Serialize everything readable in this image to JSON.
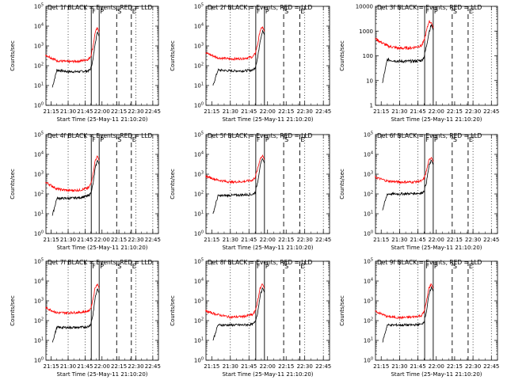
{
  "figure": {
    "background": "#ffffff",
    "axis_color": "#000000",
    "events_color": "#000000",
    "lld_color": "#ff0000"
  },
  "chart_data": [
    {
      "type": "line",
      "title": "Det 1f BLACK = Events, RED = LLD",
      "xlabel": "Start Time (25-May-11 21:10:20)",
      "ylabel": "Counts/sec",
      "x_ticks": [
        "21:15",
        "21:30",
        "21:45",
        "22:00",
        "22:15",
        "22:30",
        "22:45"
      ],
      "y_ticks": [
        "10^0",
        "10^1",
        "10^2",
        "10^3",
        "10^4",
        "10^5"
      ],
      "ylim": [
        1,
        100000
      ],
      "yscale": "log",
      "markers": {
        "solid": [
          "F",
          "P"
        ],
        "dashed": [
          "S",
          "E"
        ],
        "dotted_at": [
          "21:30",
          "21:45",
          "22:30",
          "22:45"
        ]
      },
      "series": [
        {
          "name": "Events",
          "color": "#000000",
          "x": [
            "21:16",
            "21:20",
            "21:30",
            "21:40",
            "21:48",
            "21:50",
            "21:52",
            "21:54",
            "21:56"
          ],
          "y": [
            8,
            60,
            50,
            50,
            55,
            70,
            200,
            1500,
            5000
          ]
        },
        {
          "name": "LLD",
          "color": "#ff0000",
          "x": [
            "21:10",
            "21:20",
            "21:30",
            "21:40",
            "21:48",
            "21:50",
            "21:52",
            "21:54",
            "21:56"
          ],
          "y": [
            350,
            180,
            160,
            170,
            210,
            300,
            900,
            5000,
            8000
          ]
        }
      ]
    },
    {
      "type": "line",
      "title": "Det 2f BLACK = Events, RED = LLD",
      "xlabel": "Start Time (25-May-11 21:10:20)",
      "ylabel": "Counts/sec",
      "x_ticks": [
        "21:15",
        "21:30",
        "21:45",
        "22:00",
        "22:15",
        "22:30",
        "22:45"
      ],
      "y_ticks": [
        "10^0",
        "10^1",
        "10^2",
        "10^3",
        "10^4",
        "10^5"
      ],
      "ylim": [
        1,
        100000
      ],
      "yscale": "log",
      "markers": {
        "solid": [
          "F",
          "P"
        ],
        "dashed": [
          "S",
          "E"
        ],
        "dotted_at": [
          "21:30",
          "21:45",
          "22:30",
          "22:45"
        ]
      },
      "series": [
        {
          "name": "Events",
          "color": "#000000",
          "x": [
            "21:16",
            "21:20",
            "21:30",
            "21:40",
            "21:48",
            "21:50",
            "21:52",
            "21:54",
            "21:56"
          ],
          "y": [
            10,
            60,
            55,
            55,
            60,
            80,
            250,
            1800,
            6000
          ]
        },
        {
          "name": "LLD",
          "color": "#ff0000",
          "x": [
            "21:10",
            "21:20",
            "21:30",
            "21:40",
            "21:48",
            "21:50",
            "21:52",
            "21:54",
            "21:56"
          ],
          "y": [
            450,
            250,
            220,
            230,
            280,
            400,
            1200,
            6000,
            9000
          ]
        }
      ]
    },
    {
      "type": "line",
      "title": "Det 3f BLACK = Events, RED = LLD",
      "xlabel": "Start Time (25-May-11 21:10:20)",
      "ylabel": "Counts/sec",
      "x_ticks": [
        "21:15",
        "21:30",
        "21:45",
        "22:00",
        "22:15",
        "22:30",
        "22:45"
      ],
      "y_ticks": [
        "1",
        "10",
        "100",
        "1000",
        "10000"
      ],
      "ylim": [
        1,
        10000
      ],
      "yscale": "log",
      "markers": {
        "solid": [
          "F",
          "P"
        ],
        "dashed": [
          "S",
          "E"
        ],
        "dotted_at": [
          "21:30",
          "21:45",
          "22:30",
          "22:45"
        ]
      },
      "series": [
        {
          "name": "Events",
          "color": "#000000",
          "x": [
            "21:16",
            "21:20",
            "21:30",
            "21:40",
            "21:48",
            "21:50",
            "21:52",
            "21:54",
            "21:56"
          ],
          "y": [
            8,
            70,
            60,
            60,
            65,
            90,
            250,
            900,
            1800
          ]
        },
        {
          "name": "LLD",
          "color": "#ff0000",
          "x": [
            "21:10",
            "21:20",
            "21:30",
            "21:40",
            "21:48",
            "21:50",
            "21:52",
            "21:54",
            "21:56"
          ],
          "y": [
            500,
            250,
            200,
            210,
            260,
            400,
            1000,
            2500,
            2200
          ]
        }
      ]
    },
    {
      "type": "line",
      "title": "Det 4f BLACK = Events, RED = LLD",
      "xlabel": "Start Time (25-May-11 21:10:20)",
      "ylabel": "Counts/sec",
      "x_ticks": [
        "21:15",
        "21:30",
        "21:45",
        "22:00",
        "22:15",
        "22:30",
        "22:45"
      ],
      "y_ticks": [
        "10^0",
        "10^1",
        "10^2",
        "10^3",
        "10^4",
        "10^5"
      ],
      "ylim": [
        1,
        100000
      ],
      "yscale": "log",
      "markers": {
        "solid": [
          "F",
          "P"
        ],
        "dashed": [
          "S",
          "E"
        ],
        "dotted_at": [
          "21:30",
          "21:45",
          "22:30",
          "22:45"
        ]
      },
      "series": [
        {
          "name": "Events",
          "color": "#000000",
          "x": [
            "21:16",
            "21:20",
            "21:30",
            "21:40",
            "21:48",
            "21:50",
            "21:52",
            "21:54",
            "21:56"
          ],
          "y": [
            8,
            60,
            60,
            65,
            80,
            110,
            300,
            2000,
            5000
          ]
        },
        {
          "name": "LLD",
          "color": "#ff0000",
          "x": [
            "21:10",
            "21:20",
            "21:30",
            "21:40",
            "21:48",
            "21:50",
            "21:52",
            "21:54",
            "21:56"
          ],
          "y": [
            400,
            180,
            150,
            155,
            200,
            320,
            1000,
            5000,
            8000
          ]
        }
      ]
    },
    {
      "type": "line",
      "title": "Det 5f BLACK = Events, RED = LLD",
      "xlabel": "Start Time (25-May-11 21:10:20)",
      "ylabel": "Counts/sec",
      "x_ticks": [
        "21:15",
        "21:30",
        "21:45",
        "22:00",
        "22:15",
        "22:30",
        "22:45"
      ],
      "y_ticks": [
        "10^0",
        "10^1",
        "10^2",
        "10^3",
        "10^4",
        "10^5"
      ],
      "ylim": [
        1,
        100000
      ],
      "yscale": "log",
      "markers": {
        "solid": [
          "F",
          "P"
        ],
        "dashed": [
          "S",
          "E"
        ],
        "dotted_at": [
          "21:30",
          "21:45",
          "22:30",
          "22:45"
        ]
      },
      "series": [
        {
          "name": "Events",
          "color": "#000000",
          "x": [
            "21:16",
            "21:20",
            "21:30",
            "21:40",
            "21:48",
            "21:50",
            "21:52",
            "21:54",
            "21:56"
          ],
          "y": [
            10,
            80,
            85,
            90,
            95,
            120,
            400,
            2500,
            6000
          ]
        },
        {
          "name": "LLD",
          "color": "#ff0000",
          "x": [
            "21:10",
            "21:20",
            "21:30",
            "21:40",
            "21:48",
            "21:50",
            "21:52",
            "21:54",
            "21:56"
          ],
          "y": [
            800,
            500,
            400,
            420,
            500,
            700,
            1800,
            6000,
            9000
          ]
        }
      ]
    },
    {
      "type": "line",
      "title": "Det 6f BLACK = Events, RED = LLD",
      "xlabel": "Start Time (25-May-11 21:10:20)",
      "ylabel": "Counts/sec",
      "x_ticks": [
        "21:15",
        "21:30",
        "21:45",
        "22:00",
        "22:15",
        "22:30",
        "22:45"
      ],
      "y_ticks": [
        "10^0",
        "10^1",
        "10^2",
        "10^3",
        "10^4",
        "10^5"
      ],
      "ylim": [
        1,
        100000
      ],
      "yscale": "log",
      "markers": {
        "solid": [
          "F",
          "P"
        ],
        "dashed": [
          "S",
          "E"
        ],
        "dotted_at": [
          "21:30",
          "21:45",
          "22:30",
          "22:45"
        ]
      },
      "series": [
        {
          "name": "Events",
          "color": "#000000",
          "x": [
            "21:16",
            "21:20",
            "21:30",
            "21:40",
            "21:48",
            "21:50",
            "21:52",
            "21:54",
            "21:56"
          ],
          "y": [
            15,
            100,
            100,
            105,
            110,
            140,
            400,
            2500,
            5000
          ]
        },
        {
          "name": "LLD",
          "color": "#ff0000",
          "x": [
            "21:10",
            "21:20",
            "21:30",
            "21:40",
            "21:48",
            "21:50",
            "21:52",
            "21:54",
            "21:56"
          ],
          "y": [
            700,
            450,
            400,
            400,
            450,
            600,
            1500,
            5000,
            7000
          ]
        }
      ]
    },
    {
      "type": "line",
      "title": "Det 7f BLACK = Events, RED = LLD",
      "xlabel": "Start Time (25-May-11 21:10:20)",
      "ylabel": "Counts/sec",
      "x_ticks": [
        "21:15",
        "21:30",
        "21:45",
        "22:00",
        "22:15",
        "22:30",
        "22:45"
      ],
      "y_ticks": [
        "10^0",
        "10^1",
        "10^2",
        "10^3",
        "10^4",
        "10^5"
      ],
      "ylim": [
        1,
        100000
      ],
      "yscale": "log",
      "markers": {
        "solid": [
          "F",
          "P"
        ],
        "dashed": [
          "S",
          "E"
        ],
        "dotted_at": [
          "21:30",
          "21:45",
          "22:30",
          "22:45"
        ]
      },
      "series": [
        {
          "name": "Events",
          "color": "#000000",
          "x": [
            "21:16",
            "21:20",
            "21:30",
            "21:40",
            "21:48",
            "21:50",
            "21:52",
            "21:54",
            "21:56"
          ],
          "y": [
            8,
            45,
            45,
            45,
            50,
            65,
            200,
            1500,
            4000
          ]
        },
        {
          "name": "LLD",
          "color": "#ff0000",
          "x": [
            "21:10",
            "21:20",
            "21:30",
            "21:40",
            "21:48",
            "21:50",
            "21:52",
            "21:54",
            "21:56"
          ],
          "y": [
            450,
            250,
            250,
            260,
            300,
            420,
            1200,
            5000,
            7000
          ]
        }
      ]
    },
    {
      "type": "line",
      "title": "Det 8f BLACK = Events, RED = LLD",
      "xlabel": "Start Time (25-May-11 21:10:20)",
      "ylabel": "Counts/sec",
      "x_ticks": [
        "21:15",
        "21:30",
        "21:45",
        "22:00",
        "22:15",
        "22:30",
        "22:45"
      ],
      "y_ticks": [
        "10^0",
        "10^1",
        "10^2",
        "10^3",
        "10^4",
        "10^5"
      ],
      "ylim": [
        1,
        100000
      ],
      "yscale": "log",
      "markers": {
        "solid": [
          "F",
          "P"
        ],
        "dashed": [
          "S",
          "E"
        ],
        "dotted_at": [
          "21:30",
          "21:45",
          "22:30",
          "22:45"
        ]
      },
      "series": [
        {
          "name": "Events",
          "color": "#000000",
          "x": [
            "21:16",
            "21:20",
            "21:30",
            "21:40",
            "21:48",
            "21:50",
            "21:52",
            "21:54",
            "21:56"
          ],
          "y": [
            10,
            60,
            60,
            60,
            65,
            85,
            250,
            1800,
            4500
          ]
        },
        {
          "name": "LLD",
          "color": "#ff0000",
          "x": [
            "21:10",
            "21:20",
            "21:30",
            "21:40",
            "21:48",
            "21:50",
            "21:52",
            "21:54",
            "21:56"
          ],
          "y": [
            300,
            200,
            150,
            160,
            200,
            300,
            900,
            4500,
            7000
          ]
        }
      ]
    },
    {
      "type": "line",
      "title": "Det 9f BLACK = Events, RED = LLD",
      "xlabel": "Start Time (25-May-11 21:10:20)",
      "ylabel": "Counts/sec",
      "x_ticks": [
        "21:15",
        "21:30",
        "21:45",
        "22:00",
        "22:15",
        "22:30",
        "22:45"
      ],
      "y_ticks": [
        "10^0",
        "10^1",
        "10^2",
        "10^3",
        "10^4",
        "10^5"
      ],
      "ylim": [
        1,
        100000
      ],
      "yscale": "log",
      "markers": {
        "solid": [
          "F",
          "P"
        ],
        "dashed": [
          "S",
          "E"
        ],
        "dotted_at": [
          "21:30",
          "21:45",
          "22:30",
          "22:45"
        ]
      },
      "series": [
        {
          "name": "Events",
          "color": "#000000",
          "x": [
            "21:16",
            "21:20",
            "21:30",
            "21:40",
            "21:48",
            "21:50",
            "21:52",
            "21:54",
            "21:56"
          ],
          "y": [
            8,
            60,
            60,
            60,
            65,
            90,
            300,
            2000,
            5000
          ]
        },
        {
          "name": "LLD",
          "color": "#ff0000",
          "x": [
            "21:10",
            "21:20",
            "21:30",
            "21:40",
            "21:48",
            "21:50",
            "21:52",
            "21:54",
            "21:56"
          ],
          "y": [
            300,
            160,
            140,
            150,
            180,
            280,
            900,
            4500,
            7000
          ]
        }
      ]
    }
  ]
}
